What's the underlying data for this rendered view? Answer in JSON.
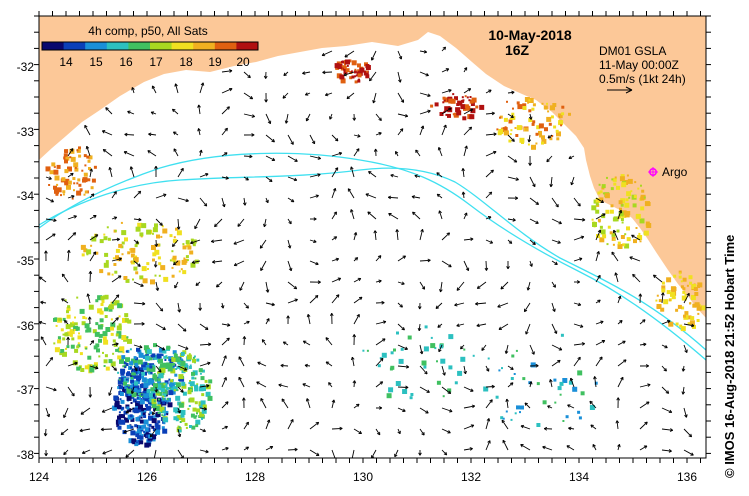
{
  "title": {
    "date": "10-May-2018",
    "time": "16Z"
  },
  "colorbar": {
    "label": "4h comp, p50, All Sats",
    "ticks": [
      "14",
      "15",
      "16",
      "17",
      "18",
      "19",
      "20"
    ],
    "colors": [
      "#08086e",
      "#0a3fb8",
      "#1a8fd8",
      "#2cc0c0",
      "#40c060",
      "#a8d820",
      "#f0e020",
      "#f0b020",
      "#e06010",
      "#b01010"
    ]
  },
  "info": {
    "product": "DM01 GSLA",
    "valid": "11-May 00:00Z",
    "scale": "0.5m/s (1kt 24h)"
  },
  "argo": {
    "label": "Argo",
    "color": "#ff00ff"
  },
  "credit": {
    "text": "© IMOS 16-Aug-2018 21:52 Hobart Time"
  },
  "axes": {
    "lon_ticks": [
      "124",
      "126",
      "128",
      "130",
      "132",
      "134",
      "136"
    ],
    "lat_ticks": [
      "-32",
      "-33",
      "-34",
      "-35",
      "-36",
      "-37",
      "-38"
    ]
  },
  "colors": {
    "land": "#fcc898",
    "sea": "#ffffff",
    "isobath": "#40e0f0",
    "arrow": "#000000"
  }
}
